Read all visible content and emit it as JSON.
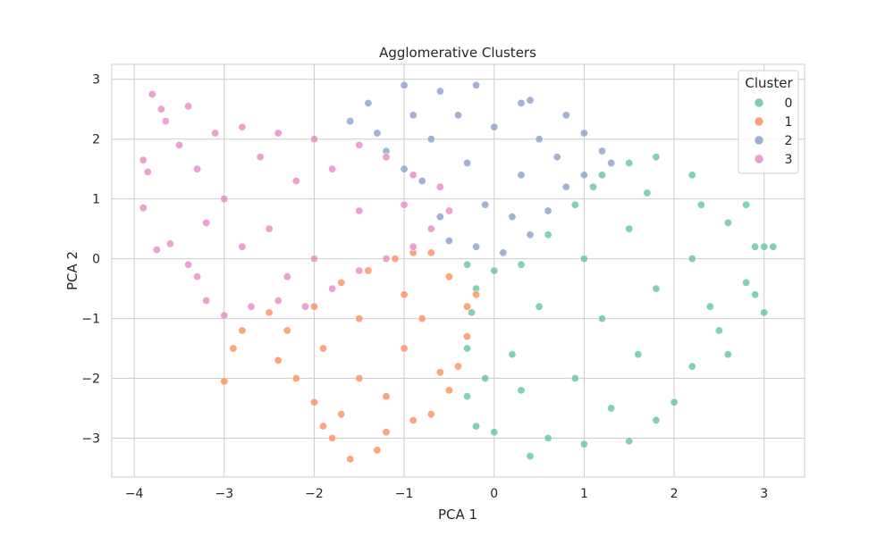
{
  "chart_data": {
    "type": "scatter",
    "title": "Agglomerative Clusters",
    "xlabel": "PCA 1",
    "ylabel": "PCA 2",
    "xlim": [
      -4.25,
      3.45
    ],
    "ylim": [
      -3.65,
      3.25
    ],
    "xticks": [
      -4,
      -3,
      -2,
      -1,
      0,
      1,
      2,
      3
    ],
    "yticks": [
      -3,
      -2,
      -1,
      0,
      1,
      2,
      3
    ],
    "xtick_labels": [
      "−4",
      "−3",
      "−2",
      "−1",
      "0",
      "1",
      "2",
      "3"
    ],
    "ytick_labels": [
      "−3",
      "−2",
      "−1",
      "0",
      "1",
      "2",
      "3"
    ],
    "grid": true,
    "legend": {
      "title": "Cluster",
      "position": "top-right"
    },
    "series": [
      {
        "name": "0",
        "color": "#66c2a5",
        "points": [
          [
            1.2,
            1.4
          ],
          [
            1.5,
            1.6
          ],
          [
            1.8,
            1.7
          ],
          [
            2.2,
            1.4
          ],
          [
            2.6,
            0.6
          ],
          [
            2.9,
            0.2
          ],
          [
            3.0,
            0.2
          ],
          [
            3.1,
            0.2
          ],
          [
            2.8,
            -0.4
          ],
          [
            2.9,
            -0.6
          ],
          [
            3.0,
            -0.9
          ],
          [
            2.5,
            -1.2
          ],
          [
            2.2,
            -1.8
          ],
          [
            2.0,
            -2.4
          ],
          [
            1.8,
            -2.7
          ],
          [
            1.5,
            -3.05
          ],
          [
            1.0,
            -3.1
          ],
          [
            0.6,
            -3.0
          ],
          [
            0.4,
            -3.3
          ],
          [
            0.0,
            -2.9
          ],
          [
            -0.2,
            -2.8
          ],
          [
            -0.3,
            -2.3
          ],
          [
            -0.3,
            -1.5
          ],
          [
            -0.25,
            -0.9
          ],
          [
            -0.2,
            -0.5
          ],
          [
            -0.3,
            -0.1
          ],
          [
            0.0,
            -0.2
          ],
          [
            0.3,
            -0.1
          ],
          [
            0.6,
            0.4
          ],
          [
            0.9,
            0.9
          ],
          [
            1.1,
            1.2
          ],
          [
            1.5,
            0.5
          ],
          [
            1.0,
            0.0
          ],
          [
            0.5,
            -0.8
          ],
          [
            1.2,
            -1.0
          ],
          [
            1.8,
            -0.5
          ],
          [
            2.2,
            0.0
          ],
          [
            1.6,
            -1.6
          ],
          [
            0.9,
            -2.0
          ],
          [
            0.2,
            -1.6
          ],
          [
            2.4,
            -0.8
          ],
          [
            1.3,
            -2.5
          ],
          [
            2.8,
            0.9
          ],
          [
            2.3,
            0.9
          ],
          [
            1.7,
            1.1
          ],
          [
            0.3,
            -2.2
          ],
          [
            -0.1,
            -2.0
          ],
          [
            2.6,
            -1.6
          ]
        ]
      },
      {
        "name": "1",
        "color": "#fc8d62",
        "points": [
          [
            -2.0,
            -0.8
          ],
          [
            -2.5,
            -0.9
          ],
          [
            -2.8,
            -1.2
          ],
          [
            -3.0,
            -2.05
          ],
          [
            -2.9,
            -1.5
          ],
          [
            -2.4,
            -1.7
          ],
          [
            -2.2,
            -2.0
          ],
          [
            -2.0,
            -2.4
          ],
          [
            -1.9,
            -2.8
          ],
          [
            -1.8,
            -3.0
          ],
          [
            -1.6,
            -3.35
          ],
          [
            -1.3,
            -3.2
          ],
          [
            -1.2,
            -2.9
          ],
          [
            -0.9,
            -2.7
          ],
          [
            -0.7,
            -2.6
          ],
          [
            -0.5,
            -2.2
          ],
          [
            -0.4,
            -1.8
          ],
          [
            -0.3,
            -1.3
          ],
          [
            -0.3,
            -0.8
          ],
          [
            -0.2,
            -0.6
          ],
          [
            -0.5,
            -0.3
          ],
          [
            -0.7,
            0.1
          ],
          [
            -0.9,
            0.1
          ],
          [
            -1.1,
            0.0
          ],
          [
            -1.4,
            -0.2
          ],
          [
            -1.7,
            -0.4
          ],
          [
            -1.5,
            -1.0
          ],
          [
            -1.0,
            -1.5
          ],
          [
            -1.5,
            -2.0
          ],
          [
            -0.8,
            -1.0
          ],
          [
            -1.9,
            -1.5
          ],
          [
            -1.2,
            -2.3
          ],
          [
            -2.3,
            -1.2
          ],
          [
            -0.6,
            -1.9
          ],
          [
            -1.7,
            -2.6
          ],
          [
            -1.0,
            -0.6
          ]
        ]
      },
      {
        "name": "2",
        "color": "#8da0cb",
        "points": [
          [
            -1.6,
            2.3
          ],
          [
            -1.4,
            2.6
          ],
          [
            -1.0,
            2.9
          ],
          [
            -0.6,
            2.8
          ],
          [
            -0.2,
            2.9
          ],
          [
            0.3,
            2.6
          ],
          [
            0.4,
            2.65
          ],
          [
            0.8,
            2.4
          ],
          [
            1.0,
            2.1
          ],
          [
            1.2,
            1.8
          ],
          [
            1.3,
            1.6
          ],
          [
            1.0,
            1.4
          ],
          [
            0.8,
            1.2
          ],
          [
            0.6,
            0.8
          ],
          [
            0.4,
            0.4
          ],
          [
            0.1,
            0.1
          ],
          [
            -0.2,
            0.2
          ],
          [
            -0.5,
            0.3
          ],
          [
            -0.6,
            0.7
          ],
          [
            -0.8,
            1.3
          ],
          [
            -1.0,
            1.5
          ],
          [
            -1.2,
            1.8
          ],
          [
            -0.7,
            2.0
          ],
          [
            -0.3,
            1.6
          ],
          [
            0.0,
            2.2
          ],
          [
            0.3,
            1.4
          ],
          [
            -0.1,
            0.9
          ],
          [
            0.5,
            2.0
          ],
          [
            -0.4,
            2.4
          ],
          [
            0.7,
            1.7
          ],
          [
            0.2,
            0.7
          ],
          [
            -0.9,
            2.4
          ],
          [
            -1.3,
            2.1
          ]
        ]
      },
      {
        "name": "3",
        "color": "#e78ac3",
        "points": [
          [
            -3.9,
            1.65
          ],
          [
            -3.85,
            1.45
          ],
          [
            -3.8,
            2.75
          ],
          [
            -3.7,
            2.5
          ],
          [
            -3.65,
            2.3
          ],
          [
            -3.5,
            1.9
          ],
          [
            -3.4,
            2.55
          ],
          [
            -3.9,
            0.85
          ],
          [
            -3.75,
            0.15
          ],
          [
            -3.6,
            0.25
          ],
          [
            -3.4,
            -0.1
          ],
          [
            -3.3,
            -0.3
          ],
          [
            -3.2,
            -0.7
          ],
          [
            -3.0,
            -0.95
          ],
          [
            -2.7,
            -0.8
          ],
          [
            -2.4,
            -0.7
          ],
          [
            -2.1,
            -0.8
          ],
          [
            -1.8,
            -0.5
          ],
          [
            -1.5,
            -0.2
          ],
          [
            -1.2,
            0.0
          ],
          [
            -0.9,
            0.2
          ],
          [
            -0.7,
            0.5
          ],
          [
            -0.5,
            0.8
          ],
          [
            -0.6,
            1.2
          ],
          [
            -0.9,
            1.4
          ],
          [
            -1.2,
            1.7
          ],
          [
            -1.5,
            1.9
          ],
          [
            -2.0,
            2.0
          ],
          [
            -2.4,
            2.1
          ],
          [
            -2.8,
            2.2
          ],
          [
            -3.1,
            2.1
          ],
          [
            -3.3,
            1.5
          ],
          [
            -3.0,
            1.0
          ],
          [
            -2.5,
            0.5
          ],
          [
            -2.0,
            0.0
          ],
          [
            -1.5,
            0.8
          ],
          [
            -2.2,
            1.3
          ],
          [
            -2.8,
            0.2
          ],
          [
            -1.0,
            0.9
          ],
          [
            -2.6,
            1.7
          ],
          [
            -3.2,
            0.6
          ],
          [
            -1.8,
            1.5
          ],
          [
            -2.3,
            -0.3
          ]
        ]
      }
    ]
  }
}
